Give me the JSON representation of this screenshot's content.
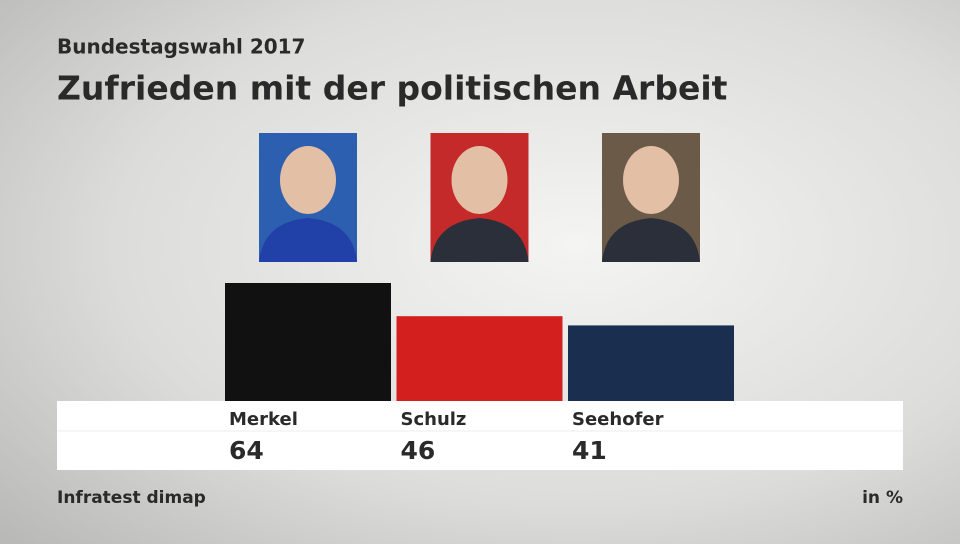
{
  "chart_data": {
    "type": "bar",
    "subtitle": "Bundestagswahl 2017",
    "title": "Zufrieden mit der politischen Arbeit",
    "categories": [
      "Merkel",
      "Schulz",
      "Seehofer"
    ],
    "values": [
      64,
      46,
      41
    ],
    "colors": [
      "#111111",
      "#d41f1f",
      "#1a2e4f"
    ],
    "source": "Infratest dimap",
    "unit": "in %"
  }
}
